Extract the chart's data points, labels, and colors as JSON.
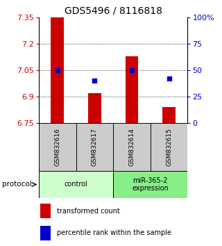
{
  "title": "GDS5496 / 8116818",
  "samples": [
    "GSM832616",
    "GSM832617",
    "GSM832614",
    "GSM832615"
  ],
  "bar_values": [
    7.35,
    6.92,
    7.13,
    6.84
  ],
  "percentile_pct": [
    50,
    40,
    50,
    42
  ],
  "bar_bottom": 6.75,
  "ylim": [
    6.75,
    7.35
  ],
  "y2lim": [
    0,
    100
  ],
  "yticks": [
    7.35,
    7.2,
    7.05,
    6.9,
    6.75
  ],
  "y2ticks": [
    100,
    75,
    50,
    25,
    0
  ],
  "y2labels": [
    "100%",
    "75",
    "50",
    "25",
    "0"
  ],
  "bar_color": "#cc0000",
  "dot_color": "#0000cc",
  "groups": [
    {
      "label": "control",
      "samples": [
        0,
        1
      ],
      "color": "#ccffcc"
    },
    {
      "label": "miR-365-2\nexpression",
      "samples": [
        2,
        3
      ],
      "color": "#88ee88"
    }
  ],
  "protocol_label": "protocol",
  "legend_bar_label": "transformed count",
  "legend_dot_label": "percentile rank within the sample",
  "bar_width": 0.35,
  "sample_box_color": "#cccccc",
  "title_fontsize": 10,
  "tick_fontsize": 8
}
